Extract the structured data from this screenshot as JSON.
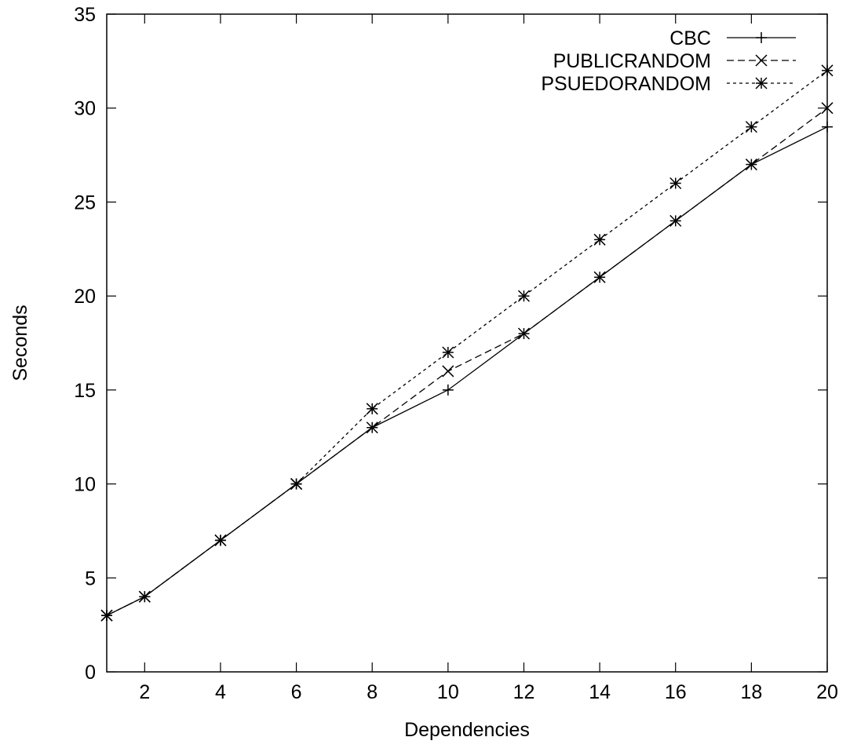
{
  "chart_data": {
    "type": "line",
    "title": "",
    "xlabel": "Dependencies",
    "ylabel": "Seconds",
    "xlim": [
      1,
      20
    ],
    "ylim": [
      0,
      35
    ],
    "xticks": [
      2,
      4,
      6,
      8,
      10,
      12,
      14,
      16,
      18,
      20
    ],
    "xtick_labels": [
      "2",
      "4",
      "6",
      "8",
      "10",
      "12",
      "14",
      "16",
      "18",
      "20"
    ],
    "yticks": [
      0,
      5,
      10,
      15,
      20,
      25,
      30,
      35
    ],
    "ytick_labels": [
      "0",
      "5",
      "10",
      "15",
      "20",
      "25",
      "30",
      "35"
    ],
    "grid": false,
    "legend_position": "top-right",
    "x": [
      1,
      2,
      4,
      6,
      8,
      10,
      12,
      14,
      16,
      18,
      20
    ],
    "series": [
      {
        "name": "CBC",
        "marker": "plus",
        "dash": "solid",
        "values": [
          3,
          4,
          7,
          10,
          13,
          15,
          18,
          21,
          24,
          27,
          29
        ]
      },
      {
        "name": "PUBLICRANDOM",
        "marker": "cross",
        "dash": "dashed",
        "values": [
          3,
          4,
          7,
          10,
          13,
          16,
          18,
          21,
          24,
          27,
          30
        ]
      },
      {
        "name": "PSUEDORANDOM",
        "marker": "star",
        "dash": "dotted",
        "values": [
          3,
          4,
          7,
          10,
          14,
          17,
          20,
          23,
          26,
          29,
          32
        ]
      }
    ]
  }
}
